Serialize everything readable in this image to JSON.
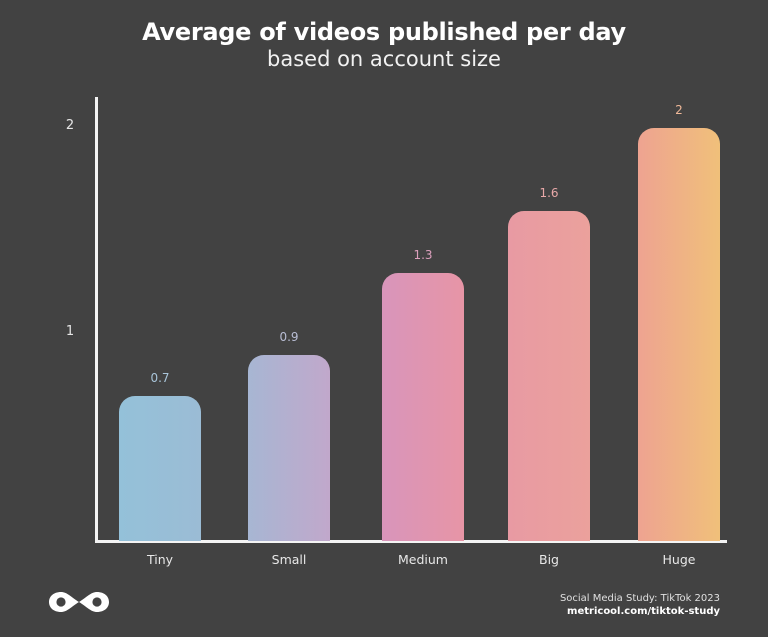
{
  "header": {
    "title": "Average of videos published per day",
    "subtitle": "based on account size"
  },
  "footer": {
    "source": "Social Media Study: TikTok 2023",
    "url": "metricool.com/tiktok-study",
    "logo_icon": "metricool-infinity-logo-icon"
  },
  "axis": {
    "y_ticks": [
      "1",
      "2"
    ]
  },
  "bars": [
    {
      "label": "Tiny",
      "value_label": "0.7",
      "value": 0.7,
      "color_start": "#94c1d9",
      "color_end": "#9bbcd5",
      "label_color": "#a9c5d9"
    },
    {
      "label": "Small",
      "value_label": "0.9",
      "value": 0.9,
      "color_start": "#a7b6d3",
      "color_end": "#c1a8cb",
      "label_color": "#b8bdd4"
    },
    {
      "label": "Medium",
      "value_label": "1.3",
      "value": 1.3,
      "color_start": "#d895bb",
      "color_end": "#e795a6",
      "label_color": "#dca0bd"
    },
    {
      "label": "Big",
      "value_label": "1.6",
      "value": 1.6,
      "color_start": "#e89aa3",
      "color_end": "#eba19c",
      "label_color": "#e8a8a8"
    },
    {
      "label": "Huge",
      "value_label": "2",
      "value": 2,
      "color_start": "#eea391",
      "color_end": "#f0c07a",
      "label_color": "#efb898"
    }
  ],
  "chart_data": {
    "type": "bar",
    "title": "Average of videos published per day",
    "subtitle": "based on account size",
    "categories": [
      "Tiny",
      "Small",
      "Medium",
      "Big",
      "Huge"
    ],
    "values": [
      0.7,
      0.9,
      1.3,
      1.6,
      2
    ],
    "xlabel": "",
    "ylabel": "",
    "ylim": [
      0,
      2.1
    ],
    "y_ticks": [
      1,
      2
    ],
    "grid": false,
    "legend": "none",
    "data_labels": true,
    "source": "Social Media Study: TikTok 2023 — metricool.com/tiktok-study"
  }
}
